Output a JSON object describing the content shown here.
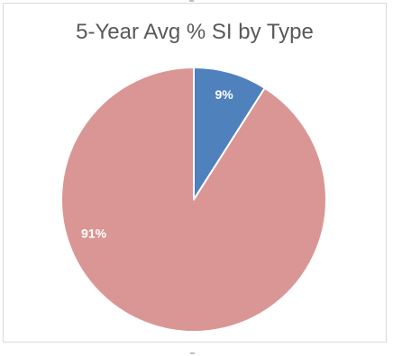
{
  "chart_data": {
    "type": "pie",
    "title": "5-Year Avg % SI by Type",
    "slices": [
      {
        "label": "9%",
        "value": 9,
        "color": "#4f81bd"
      },
      {
        "label": "91%",
        "value": 91,
        "color": "#d99694"
      }
    ],
    "start_angle_deg": 0,
    "direction": "clockwise",
    "slice_border_color": "#ffffff",
    "legend": "none"
  }
}
